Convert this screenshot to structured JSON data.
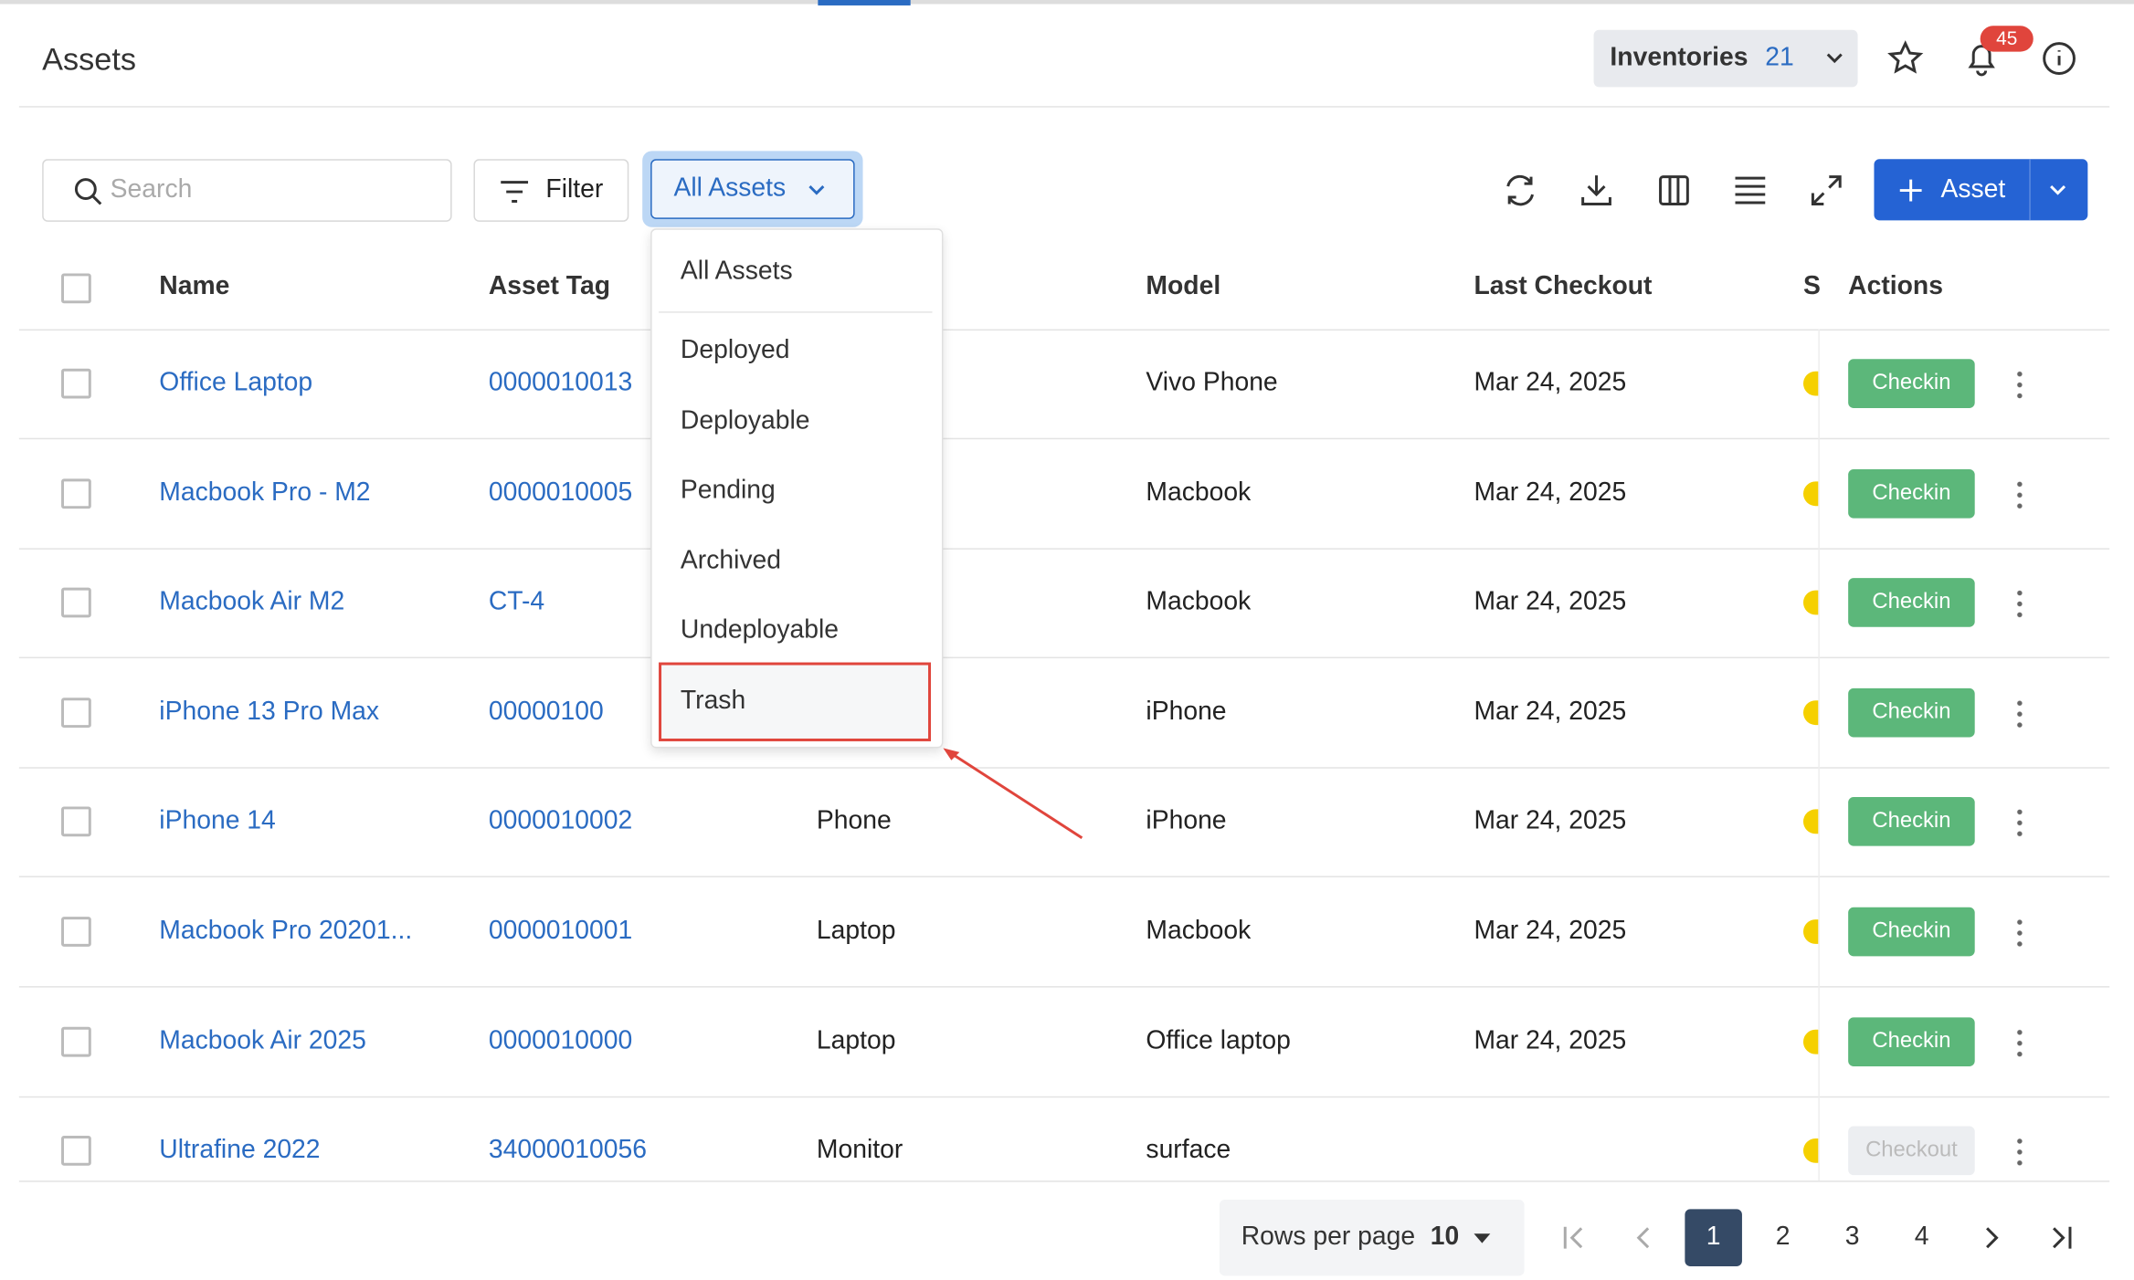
{
  "header": {
    "title": "Assets",
    "inventory_label": "Inventories",
    "inventory_count": "21",
    "notification_count": "45"
  },
  "toolbar": {
    "search_placeholder": "Search",
    "filter": "Filter",
    "view": "All Assets",
    "add": "Asset"
  },
  "table": {
    "columns": [
      "Name",
      "Asset Tag",
      "Model",
      "Last Checkout",
      "S",
      "Actions"
    ],
    "rows": [
      {
        "name": "Office Laptop",
        "tag": "0000010013",
        "model": "Vivo Phone",
        "last_checkout": "Mar 24, 2025",
        "action": "Checkin",
        "action_enabled": true
      },
      {
        "name": "Macbook Pro - M2",
        "tag": "0000010005",
        "model": "Macbook",
        "last_checkout": "Mar 24, 2025",
        "action": "Checkin",
        "action_enabled": true
      },
      {
        "name": "Macbook Air M2",
        "tag": "CT-4",
        "model": "Macbook",
        "last_checkout": "Mar 24, 2025",
        "action": "Checkin",
        "action_enabled": true
      },
      {
        "name": "iPhone 13 Pro Max",
        "tag": "00000100",
        "model": "iPhone",
        "last_checkout": "Mar 24, 2025",
        "action": "Checkin",
        "action_enabled": true
      },
      {
        "name": "iPhone 14",
        "tag": "0000010002",
        "category": "Phone",
        "model": "iPhone",
        "last_checkout": "Mar 24, 2025",
        "action": "Checkin",
        "action_enabled": true
      },
      {
        "name": "Macbook Pro 20201...",
        "tag": "0000010001",
        "category": "Laptop",
        "model": "Macbook",
        "last_checkout": "Mar 24, 2025",
        "action": "Checkin",
        "action_enabled": true
      },
      {
        "name": "Macbook Air 2025",
        "tag": "0000010000",
        "category": "Laptop",
        "model": "Office laptop",
        "last_checkout": "Mar 24, 2025",
        "action": "Checkin",
        "action_enabled": true
      },
      {
        "name": "Ultrafine 2022",
        "tag": "34000010056",
        "category": "Monitor",
        "model": "surface",
        "action": "Checkout",
        "action_enabled": false
      }
    ]
  },
  "dropdown": {
    "options": [
      "All Assets",
      "Deployed",
      "Deployable",
      "Pending",
      "Archived",
      "Undeployable",
      "Trash"
    ],
    "highlighted": 6
  },
  "pagination": {
    "rows_per_page_label": "Rows per page",
    "rows_per_page": "10",
    "pages": [
      "1",
      "2",
      "3",
      "4"
    ],
    "current": 0
  }
}
